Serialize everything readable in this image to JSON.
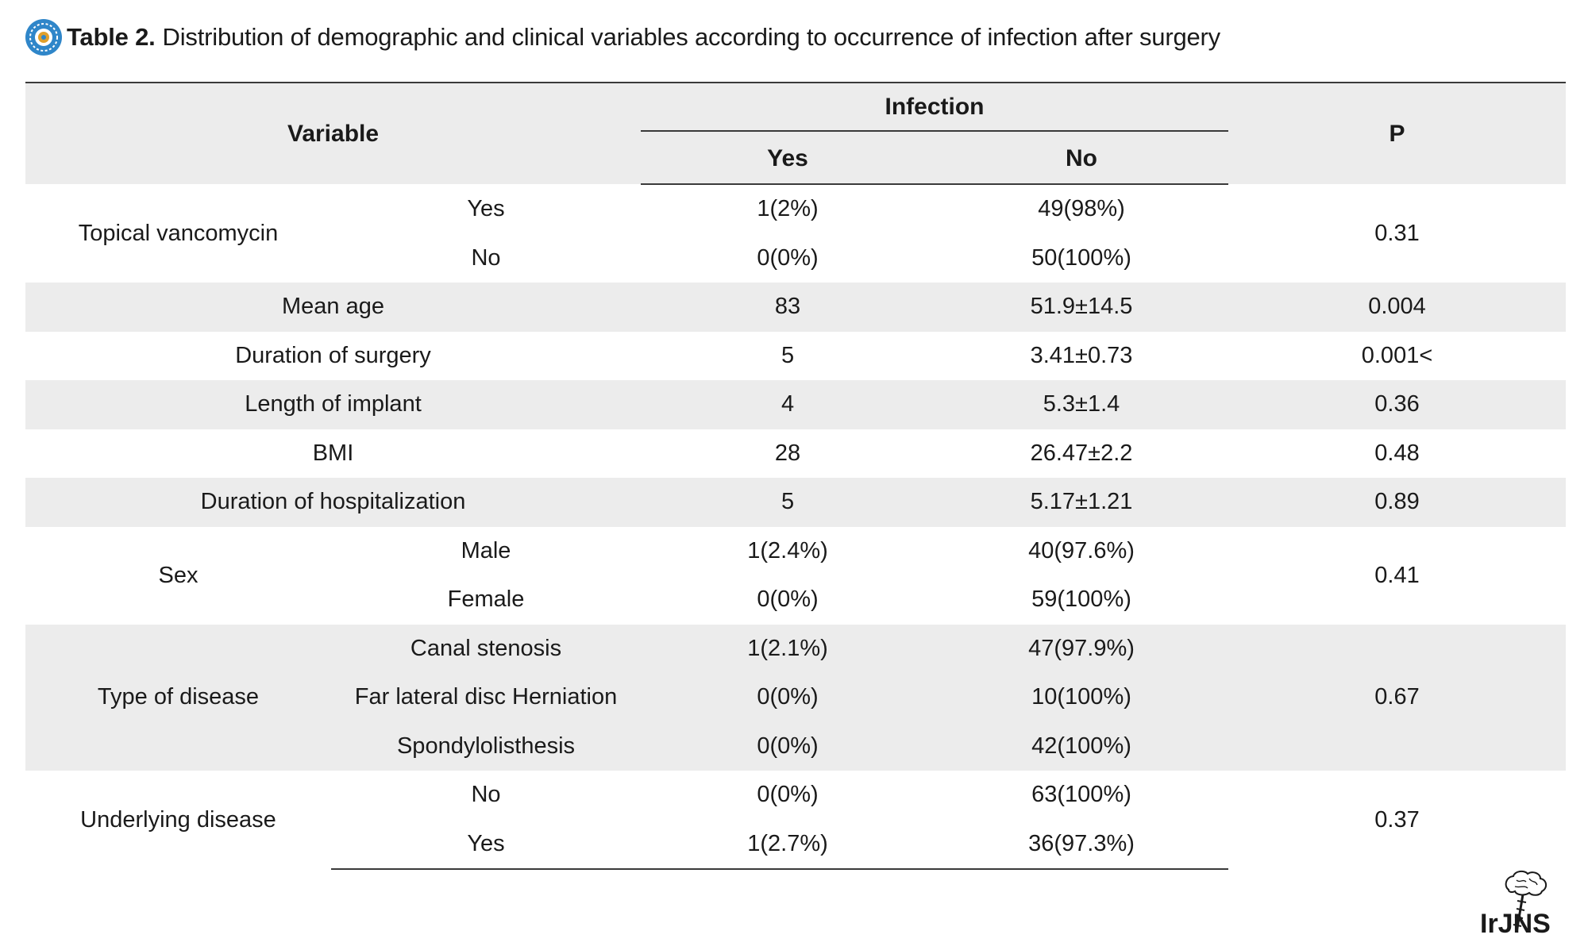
{
  "caption": {
    "label": "Table 2.",
    "text": "Distribution of demographic and clinical variables according to occurrence of infection after surgery"
  },
  "header": {
    "variable": "Variable",
    "infection": "Infection",
    "yes": "Yes",
    "no": "No",
    "p": "P"
  },
  "rows": {
    "vancomycin": {
      "label": "Topical vancomycin",
      "p": "0.31",
      "sub": [
        {
          "label": "Yes",
          "yes": "1(2%)",
          "no": "49(98%)"
        },
        {
          "label": "No",
          "yes": "0(0%)",
          "no": "50(100%)"
        }
      ]
    },
    "age": {
      "label": "Mean age",
      "yes": "83",
      "no": "51.9±14.5",
      "p": "0.004"
    },
    "duration": {
      "label": "Duration of surgery",
      "yes": "5",
      "no": "3.41±0.73",
      "p": "0.001<"
    },
    "implant": {
      "label": "Length of implant",
      "yes": "4",
      "no": "5.3±1.4",
      "p": "0.36"
    },
    "bmi": {
      "label": "BMI",
      "yes": "28",
      "no": "26.47±2.2",
      "p": "0.48"
    },
    "hospitalization": {
      "label": "Duration of hospitalization",
      "yes": "5",
      "no": "5.17±1.21",
      "p": "0.89"
    },
    "sex": {
      "label": "Sex",
      "p": "0.41",
      "sub": [
        {
          "label": "Male",
          "yes": "1(2.4%)",
          "no": "40(97.6%)"
        },
        {
          "label": "Female",
          "yes": "0(0%)",
          "no": "59(100%)"
        }
      ]
    },
    "disease": {
      "label": "Type of disease",
      "p": "0.67",
      "sub": [
        {
          "label": "Canal stenosis",
          "yes": "1(2.1%)",
          "no": "47(97.9%)"
        },
        {
          "label": "Far lateral disc Herniation",
          "yes": "0(0%)",
          "no": "10(100%)"
        },
        {
          "label": "Spondylolisthesis",
          "yes": "0(0%)",
          "no": "42(100%)"
        }
      ]
    },
    "underlying": {
      "label": "Underlying disease",
      "p": "0.37",
      "sub": [
        {
          "label": "No",
          "yes": "0(0%)",
          "no": "63(100%)"
        },
        {
          "label": "Yes",
          "yes": "1(2.7%)",
          "no": "36(97.3%)"
        }
      ]
    }
  },
  "logo": {
    "text": "IrJNS"
  },
  "colors": {
    "row_shade": "#ececec",
    "rule": "#3a3a3a",
    "badge": "#2f86c9"
  }
}
